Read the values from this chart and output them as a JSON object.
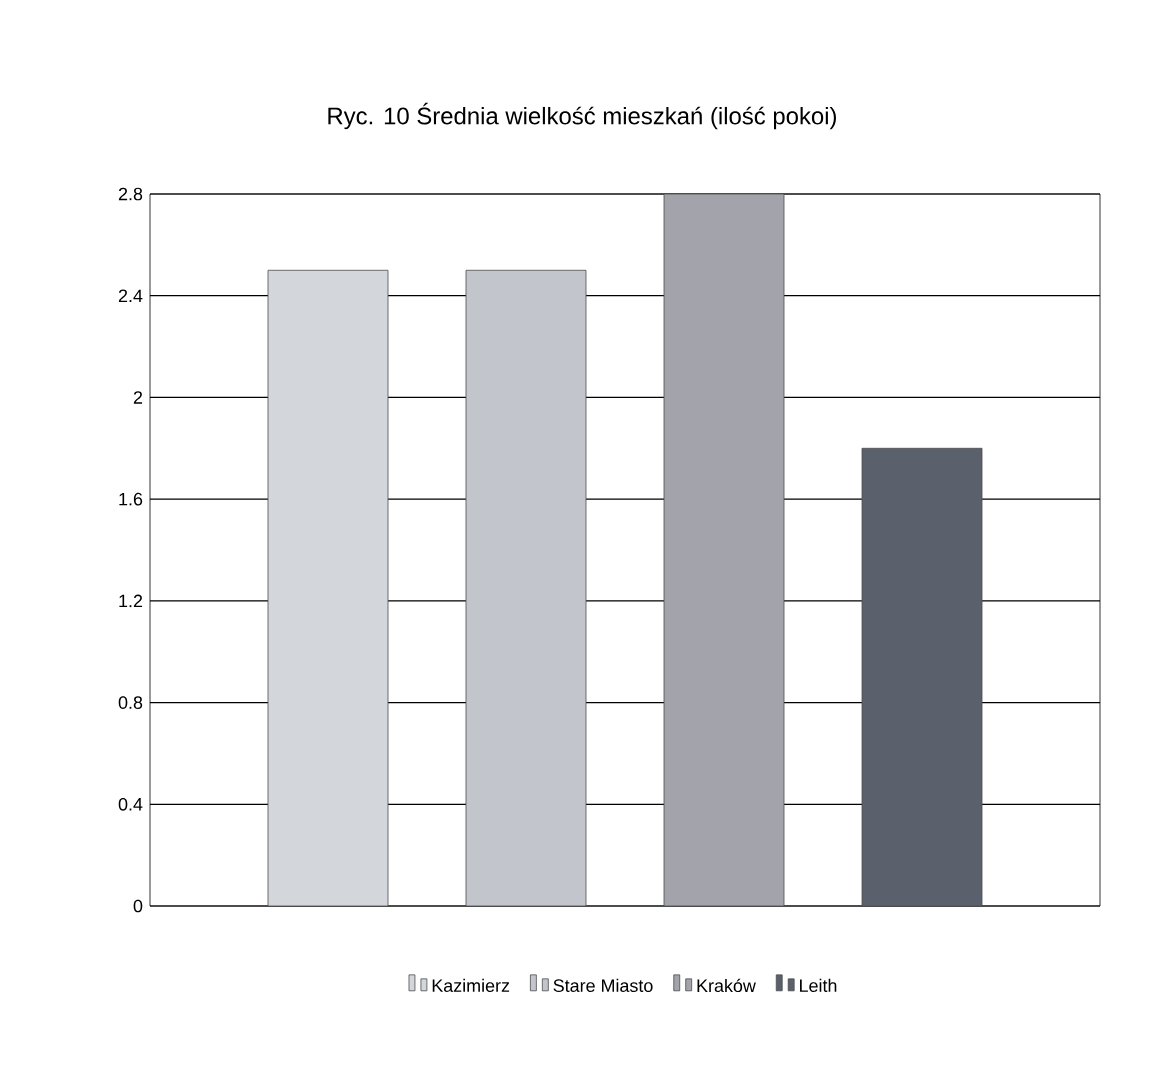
{
  "chart_data": {
    "type": "bar",
    "title": "Ryc. 10 Średnia wielkość mieszkań (ilość pokoi)",
    "categories": [
      null
    ],
    "series": [
      {
        "name": "Kazimierz",
        "color": "#d3d6da",
        "values": [
          2.5
        ]
      },
      {
        "name": "Stare Miasto",
        "color": "#c3c5cc",
        "values": [
          2.5
        ]
      },
      {
        "name": "Kraków",
        "color": "#a2a3ab",
        "values": [
          2.8
        ]
      },
      {
        "name": "Leith",
        "color": "#5b616c",
        "values": [
          1.8
        ]
      }
    ],
    "ylim": [
      0,
      2.8
    ],
    "yticks": [
      0,
      0.4,
      0.8,
      1.2,
      1.6,
      2,
      2.4,
      2.8
    ],
    "grid": "y",
    "legend": "bottom"
  }
}
